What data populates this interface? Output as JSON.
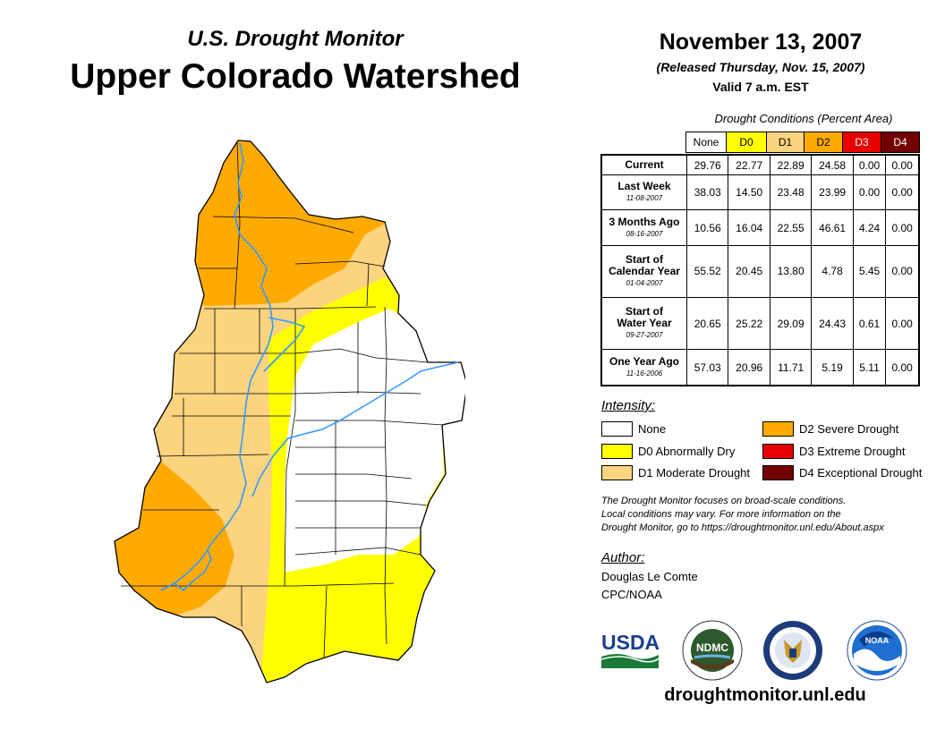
{
  "header": {
    "title_line1": "U.S. Drought Monitor",
    "title_line2": "Upper Colorado Watershed",
    "date": "November 13, 2007",
    "released": "(Released Thursday, Nov. 15, 2007)",
    "valid": "Valid 7 a.m. EST"
  },
  "table": {
    "title": "Drought Conditions (Percent Area)",
    "columns": [
      {
        "label": "None",
        "color": "#ffffff",
        "text_color": "#000000"
      },
      {
        "label": "D0",
        "color": "#ffff00",
        "text_color": "#000000"
      },
      {
        "label": "D1",
        "color": "#fcd37f",
        "text_color": "#000000"
      },
      {
        "label": "D2",
        "color": "#ffaa00",
        "text_color": "#000000"
      },
      {
        "label": "D3",
        "color": "#e60000",
        "text_color": "#ffffff"
      },
      {
        "label": "D4",
        "color": "#730000",
        "text_color": "#ffffff"
      }
    ],
    "rows": [
      {
        "label1": "Current",
        "label2": "",
        "date": "",
        "values": [
          "29.76",
          "22.77",
          "22.89",
          "24.58",
          "0.00",
          "0.00"
        ]
      },
      {
        "label1": "Last Week",
        "label2": "",
        "date": "11-08-2007",
        "values": [
          "38.03",
          "14.50",
          "23.48",
          "23.99",
          "0.00",
          "0.00"
        ]
      },
      {
        "label1": "3 Months Ago",
        "label2": "",
        "date": "08-16-2007",
        "values": [
          "10.56",
          "16.04",
          "22.55",
          "46.61",
          "4.24",
          "0.00"
        ]
      },
      {
        "label1": "Start of",
        "label2": "Calendar Year",
        "date": "01-04-2007",
        "values": [
          "55.52",
          "20.45",
          "13.80",
          "4.78",
          "5.45",
          "0.00"
        ]
      },
      {
        "label1": "Start of",
        "label2": "Water Year",
        "date": "09-27-2007",
        "values": [
          "20.65",
          "25.22",
          "29.09",
          "24.43",
          "0.61",
          "0.00"
        ]
      },
      {
        "label1": "One Year Ago",
        "label2": "",
        "date": "11-16-2006",
        "values": [
          "57.03",
          "20.96",
          "11.71",
          "5.19",
          "5.11",
          "0.00"
        ]
      }
    ]
  },
  "legend": {
    "title": "Intensity:",
    "items": [
      {
        "label": "None",
        "color": "#ffffff"
      },
      {
        "label": "D0 Abnormally Dry",
        "color": "#ffff00"
      },
      {
        "label": "D1 Moderate Drought",
        "color": "#fcd37f"
      },
      {
        "label": "D2 Severe Drought",
        "color": "#ffaa00"
      },
      {
        "label": "D3 Extreme Drought",
        "color": "#e60000"
      },
      {
        "label": "D4 Exceptional Drought",
        "color": "#730000"
      }
    ]
  },
  "note": {
    "line1": "The Drought Monitor focuses on broad-scale conditions.",
    "line2": "Local conditions may vary. For more information on the",
    "line3": "Drought Monitor, go to https://droughtmonitor.unl.edu/About.aspx"
  },
  "author": {
    "label": "Author:",
    "name": "Douglas Le Comte",
    "org": "CPC/NOAA"
  },
  "logos": {
    "usda": "USDA",
    "ndmc": "NDMC",
    "noaa": "NOAA"
  },
  "footer": {
    "website": "droughtmonitor.unl.edu"
  },
  "colors": {
    "river": "#3399ff",
    "boundary": "#000000",
    "none": "#ffffff",
    "d0": "#ffff00",
    "d1": "#fcd37f",
    "d2": "#ffaa00"
  }
}
